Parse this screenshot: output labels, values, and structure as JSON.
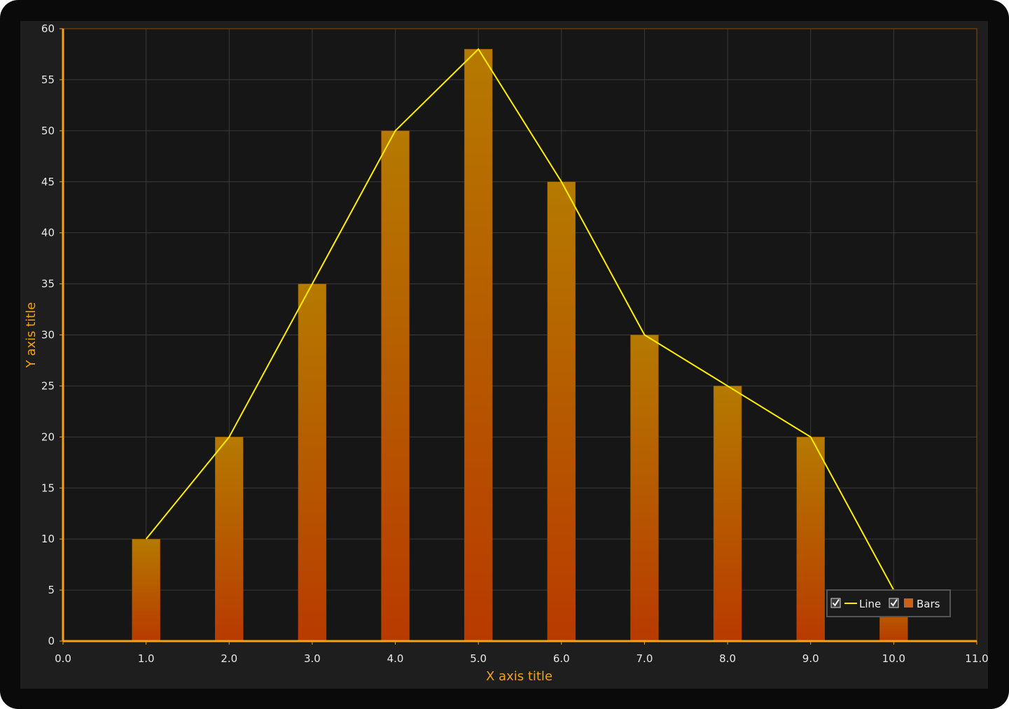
{
  "chart_data": {
    "type": "bar",
    "x": [
      1,
      2,
      3,
      4,
      5,
      6,
      7,
      8,
      9,
      10
    ],
    "series": [
      {
        "name": "Line",
        "type": "line",
        "color": "#ffee00",
        "values": [
          10,
          20,
          35,
          50,
          58,
          45,
          30,
          25,
          20,
          5
        ]
      },
      {
        "name": "Bars",
        "type": "bar",
        "color": "#c8621a",
        "values": [
          10,
          20,
          35,
          50,
          58,
          45,
          30,
          25,
          20,
          5
        ]
      }
    ],
    "xlabel": "X axis title",
    "ylabel": "Y axis title",
    "xlim": [
      0,
      11
    ],
    "ylim": [
      0,
      60
    ],
    "xticks": [
      "0.0",
      "1.0",
      "2.0",
      "3.0",
      "4.0",
      "5.0",
      "6.0",
      "7.0",
      "8.0",
      "9.0",
      "10.0",
      "11.0"
    ],
    "yticks": [
      "0",
      "5",
      "10",
      "15",
      "20",
      "25",
      "30",
      "35",
      "40",
      "45",
      "50",
      "55",
      "60"
    ],
    "grid": true,
    "legend": {
      "position": "bottom-right",
      "entries": [
        "Line",
        "Bars"
      ]
    },
    "colors": {
      "background": "#161616",
      "axis": "#f2a31a",
      "grid": "#3a3a3a",
      "bar_top": "#b57a00",
      "bar_bottom": "#b83a00",
      "line": "#ffee00"
    }
  }
}
